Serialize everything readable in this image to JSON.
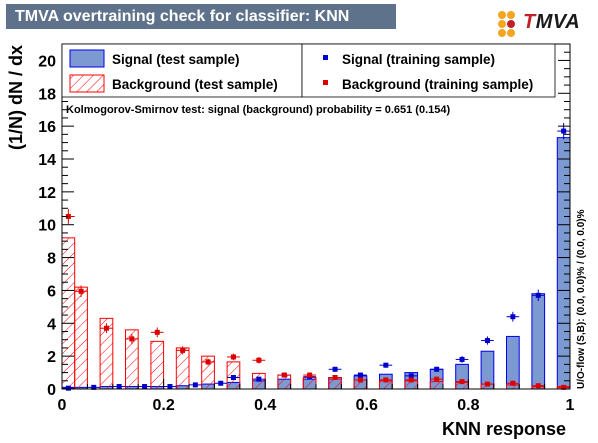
{
  "title": "TMVA overtraining check for classifier: KNN",
  "logo_text": "TMVA",
  "legend": {
    "signal_test": "Signal (test sample)",
    "background_test": "Background (test sample)",
    "signal_train": "Signal (training sample)",
    "background_train": "Background (training sample)"
  },
  "ks_text": "Kolmogorov-Smirnov test: signal (background) probability = 0.651 (0.154)",
  "overflow_text": "U/O-flow (S,B): (0.0, 0.0)% / (0.0, 0.0)%",
  "colors": {
    "signal_fill": "#7d99d1",
    "signal_line": "#0000ee",
    "background_line": "#ff0000",
    "signal_marker": "#0000cc",
    "background_marker": "#dd0000",
    "title_bg": "#5f728b"
  },
  "chart_data": {
    "type": "histogram",
    "xlabel": "KNN response",
    "ylabel": "(1/N) dN / dx",
    "xlim": [
      0,
      1
    ],
    "ylim": [
      0,
      21
    ],
    "x_ticks": [
      "0",
      "0.2",
      "0.4",
      "0.6",
      "0.8",
      "1"
    ],
    "y_ticks": [
      "0",
      "2",
      "4",
      "6",
      "8",
      "10",
      "12",
      "14",
      "16",
      "18",
      "20"
    ],
    "bin_edges": [
      0,
      0.025,
      0.05,
      0.075,
      0.1,
      0.125,
      0.15,
      0.175,
      0.2,
      0.225,
      0.25,
      0.275,
      0.3,
      0.325,
      0.35,
      0.375,
      0.4,
      0.425,
      0.45,
      0.475,
      0.5,
      0.525,
      0.55,
      0.575,
      0.6,
      0.625,
      0.65,
      0.675,
      0.7,
      0.725,
      0.75,
      0.775,
      0.8,
      0.825,
      0.85,
      0.875,
      0.9,
      0.925,
      0.95,
      0.975,
      1.0
    ],
    "series": [
      {
        "name": "Signal (test sample)",
        "kind": "filled-histogram",
        "values": [
          0.1,
          0.1,
          0.15,
          0.15,
          0.15,
          0.2,
          0.3,
          0.4,
          0.5,
          0.6,
          0.6,
          0.7,
          0.8,
          0.9,
          1.0,
          1.2,
          1.5,
          2.3,
          3.2,
          5.8,
          15.3
        ],
        "bins": [
          [
            0,
            0.025
          ],
          [
            0.025,
            0.05
          ],
          [
            0.075,
            0.1
          ],
          [
            0.125,
            0.15
          ],
          [
            0.175,
            0.2
          ],
          [
            0.225,
            0.25
          ],
          [
            0.275,
            0.3
          ],
          [
            0.325,
            0.35
          ],
          [
            0.375,
            0.4
          ],
          [
            0.425,
            0.45
          ],
          [
            0.475,
            0.5
          ],
          [
            0.525,
            0.55
          ],
          [
            0.575,
            0.6
          ],
          [
            0.625,
            0.65
          ],
          [
            0.675,
            0.7
          ],
          [
            0.725,
            0.75
          ],
          [
            0.775,
            0.8
          ],
          [
            0.825,
            0.85
          ],
          [
            0.875,
            0.9
          ],
          [
            0.925,
            0.95
          ],
          [
            0.975,
            1.0
          ]
        ]
      },
      {
        "name": "Background (test sample)",
        "kind": "hatched-histogram",
        "values": [
          9.2,
          6.2,
          4.3,
          3.6,
          2.9,
          2.5,
          2.0,
          1.65,
          0.95,
          0.85,
          0.7,
          0.6,
          0.55,
          0.5,
          0.5,
          0.45,
          0.4,
          0.3,
          0.25,
          0.15,
          0.15
        ],
        "bins": [
          [
            0,
            0.025
          ],
          [
            0.025,
            0.05
          ],
          [
            0.075,
            0.1
          ],
          [
            0.125,
            0.15
          ],
          [
            0.175,
            0.2
          ],
          [
            0.225,
            0.25
          ],
          [
            0.275,
            0.3
          ],
          [
            0.325,
            0.35
          ],
          [
            0.375,
            0.4
          ],
          [
            0.425,
            0.45
          ],
          [
            0.475,
            0.5
          ],
          [
            0.525,
            0.55
          ],
          [
            0.575,
            0.6
          ],
          [
            0.625,
            0.65
          ],
          [
            0.675,
            0.7
          ],
          [
            0.725,
            0.75
          ],
          [
            0.775,
            0.8
          ],
          [
            0.825,
            0.85
          ],
          [
            0.875,
            0.9
          ],
          [
            0.925,
            0.95
          ],
          [
            0.975,
            1.0
          ]
        ]
      },
      {
        "name": "Signal (training sample)",
        "kind": "points",
        "x": [
          0.0125,
          0.0625,
          0.1125,
          0.1625,
          0.2125,
          0.2625,
          0.3125,
          0.3375,
          0.3875,
          0.4375,
          0.4875,
          0.5375,
          0.5875,
          0.6375,
          0.6875,
          0.7375,
          0.7875,
          0.8375,
          0.8875,
          0.9375,
          0.9875
        ],
        "y": [
          0.05,
          0.1,
          0.15,
          0.15,
          0.15,
          0.25,
          0.35,
          0.7,
          0.6,
          0.85,
          0.75,
          1.2,
          0.85,
          1.45,
          0.8,
          1.2,
          1.8,
          2.95,
          4.4,
          5.7,
          15.7
        ],
        "yerr": [
          0.05,
          0.05,
          0.05,
          0.05,
          0.05,
          0.05,
          0.05,
          0.1,
          0.1,
          0.1,
          0.1,
          0.15,
          0.1,
          0.15,
          0.1,
          0.15,
          0.2,
          0.25,
          0.3,
          0.35,
          0.5
        ]
      },
      {
        "name": "Background (training sample)",
        "kind": "points",
        "x": [
          0.0125,
          0.0375,
          0.0875,
          0.1375,
          0.1875,
          0.2375,
          0.2875,
          0.3375,
          0.3875,
          0.4375,
          0.4875,
          0.5375,
          0.5875,
          0.6375,
          0.6875,
          0.7375,
          0.7875,
          0.8375,
          0.8875,
          0.9375,
          0.9875
        ],
        "y": [
          10.5,
          5.95,
          3.7,
          3.05,
          3.45,
          2.35,
          1.65,
          1.95,
          1.75,
          0.85,
          0.85,
          0.7,
          0.55,
          0.55,
          0.55,
          0.6,
          0.45,
          0.3,
          0.35,
          0.2,
          0.1
        ],
        "yerr": [
          0.45,
          0.35,
          0.3,
          0.3,
          0.3,
          0.25,
          0.2,
          0.2,
          0.2,
          0.15,
          0.15,
          0.12,
          0.1,
          0.1,
          0.1,
          0.1,
          0.1,
          0.08,
          0.08,
          0.06,
          0.05
        ]
      }
    ]
  }
}
